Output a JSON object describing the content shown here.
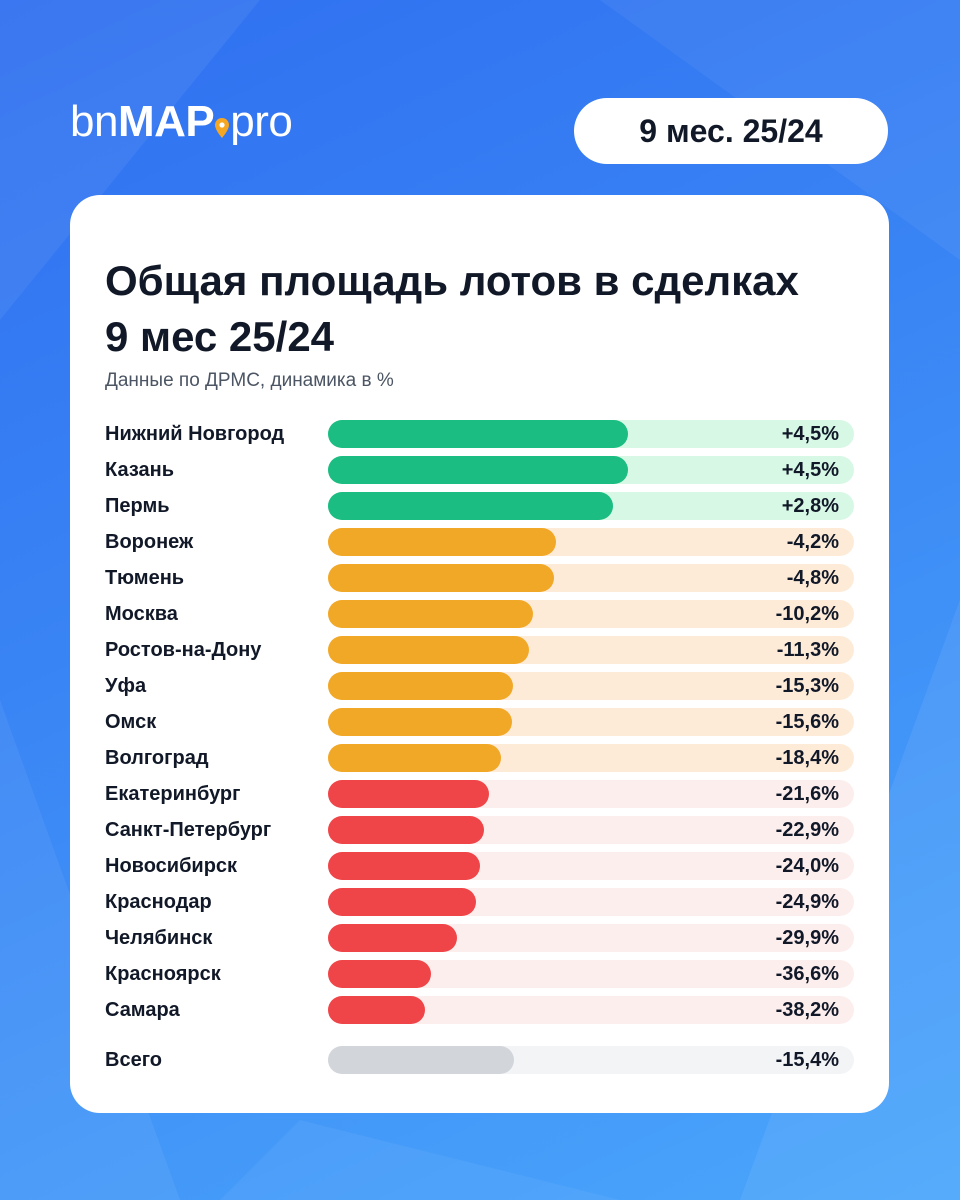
{
  "brand": {
    "prefix": "bn",
    "main": "MAP",
    "suffix": "pro"
  },
  "period_badge": "9 мес. 25/24",
  "title": "Общая площадь лотов в сделках 9 мес 25/24",
  "subtitle": "Данные по ДРМС, динамика в %",
  "colors": {
    "positive": "#1bbd82",
    "moderate": "#f2a827",
    "negative": "#ef4548",
    "total": "#d2d5da",
    "logo_pin": "#f5a623"
  },
  "chart_data": {
    "type": "bar",
    "orientation": "horizontal",
    "title": "Общая площадь лотов в сделках 9 мес 25/24",
    "subtitle": "Данные по ДРМС, динамика в %",
    "unit": "%",
    "categories": [
      "Нижний Новгород",
      "Казань",
      "Пермь",
      "Воронеж",
      "Тюмень",
      "Москва",
      "Ростов-на-Дону",
      "Уфа",
      "Омск",
      "Волгоград",
      "Екатеринбург",
      "Санкт-Петербург",
      "Новосибирск",
      "Краснодар",
      "Челябинск",
      "Красноярск",
      "Самара"
    ],
    "values": [
      4.5,
      4.5,
      2.8,
      -4.2,
      -4.8,
      -10.2,
      -11.3,
      -15.3,
      -15.6,
      -18.4,
      -21.6,
      -22.9,
      -24.0,
      -24.9,
      -29.9,
      -36.6,
      -38.2
    ],
    "labels": [
      "+4,5%",
      "+4,5%",
      "+2,8%",
      "-4,2%",
      "-4,8%",
      "-10,2%",
      "-11,3%",
      "-15,3%",
      "-15,6%",
      "-18,4%",
      "-21,6%",
      "-22,9%",
      "-24,0%",
      "-24,9%",
      "-29,9%",
      "-36,6%",
      "-38,2%"
    ],
    "groups": [
      "pos",
      "pos",
      "pos",
      "mid",
      "mid",
      "mid",
      "mid",
      "mid",
      "mid",
      "mid",
      "neg",
      "neg",
      "neg",
      "neg",
      "neg",
      "neg",
      "neg"
    ],
    "total": {
      "category": "Всего",
      "value": -15.4,
      "label": "-15,4%"
    }
  }
}
